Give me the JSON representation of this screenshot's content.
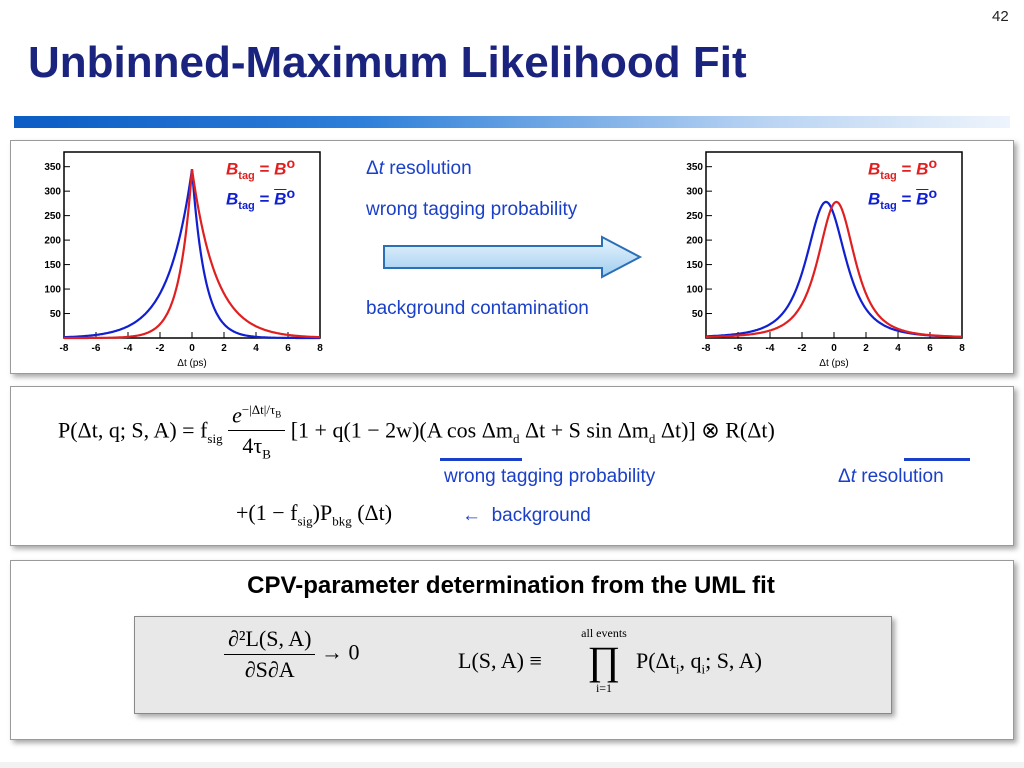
{
  "slide": {
    "number": "42",
    "title": "Unbinned-Maximum Likelihood Fit"
  },
  "plots": {
    "left": {
      "y_ticks": [
        "350",
        "300",
        "250",
        "200",
        "150",
        "100",
        "50"
      ],
      "x_ticks": [
        "-8",
        "-6",
        "-4",
        "-2",
        "0",
        "2",
        "4",
        "6",
        "8"
      ],
      "xlabel": "Δt (ps)",
      "red_peak": 345,
      "blue_peak": 345
    },
    "right": {
      "y_ticks": [
        "350",
        "300",
        "250",
        "200",
        "150",
        "100",
        "50"
      ],
      "x_ticks": [
        "-8",
        "-6",
        "-4",
        "-2",
        "0",
        "2",
        "4",
        "6",
        "8"
      ],
      "xlabel": "Δt (ps)",
      "red_peak": 278,
      "blue_peak": 278
    },
    "legend": {
      "b": "B",
      "sub": "tag",
      "eq": " = ",
      "b0": "B",
      "sup": "o",
      "b0bar": "B",
      "colors": {
        "red": "#e02020",
        "blue": "#1020d0"
      }
    }
  },
  "effects": {
    "resolution_delta": "Δ",
    "resolution_t": "t",
    "resolution_text": " resolution",
    "mistag": "wrong tagging probability",
    "background": "background contamination"
  },
  "formula": {
    "lhs": "P(Δt, q; S, A) = f",
    "sig": "sig",
    "exp_num": "e",
    "exp_sup": "−|Δt|/τ",
    "exp_sup_sub": "B",
    "den": "4τ",
    "den_sub": "B",
    "bracket": "[1 + q(1 − 2w)(A cos Δm",
    "d1": "d",
    "mid": " Δt + S sin Δm",
    "d2": "d",
    "end": " Δt)] ⊗ R(Δt)",
    "line2_a": "+(1 − f",
    "line2_sig": "sig",
    "line2_b": ")P",
    "line2_bkg": "bkg",
    "line2_c": " (Δt)",
    "label_mistag": "wrong tagging probability",
    "label_res_delta": "Δ",
    "label_res_t": "t",
    "label_res": " resolution",
    "label_bkg_arrow": "←",
    "label_bkg": "background"
  },
  "cpv": {
    "title": "CPV-parameter determination from the UML fit",
    "deriv_num": "∂²L(S, A)",
    "deriv_den": "∂S∂A",
    "arrow": "→ 0",
    "like_lhs": "L(S, A) ≡",
    "prod_top": "all events",
    "prod": "∏",
    "prod_bottom": "i=1",
    "prod_rhs": "P(Δt",
    "i1": "i",
    "mid": ", q",
    "i2": "i",
    "end": "; S, A)"
  }
}
